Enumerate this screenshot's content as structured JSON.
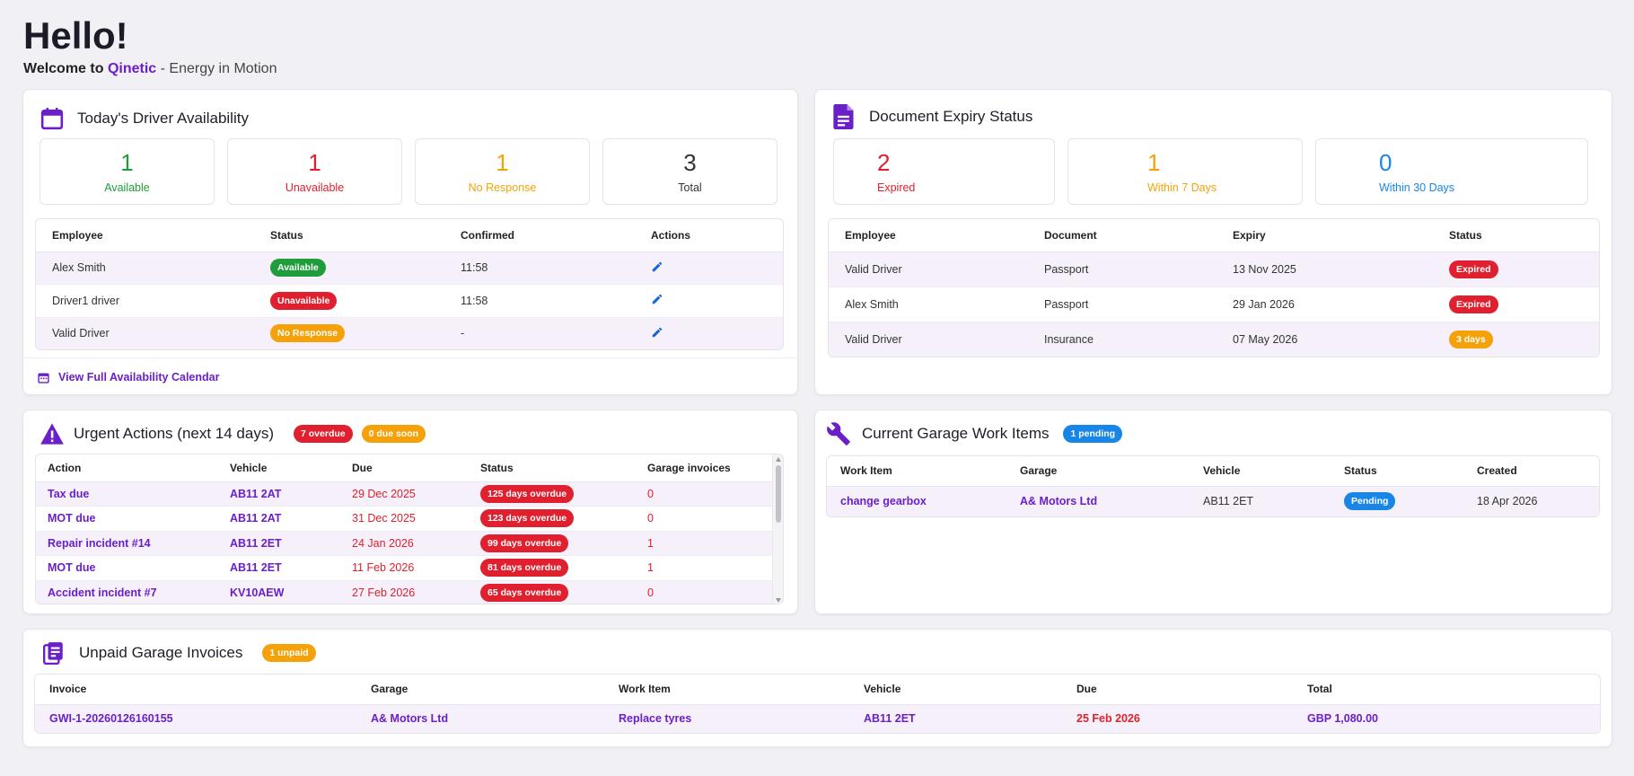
{
  "greeting": {
    "title": "Hello!",
    "welcome": "Welcome to",
    "brand": "Qinetic",
    "tagline": "- Energy in Motion"
  },
  "availability": {
    "title": "Today's Driver Availability",
    "stats": [
      {
        "value": "1",
        "label": "Available",
        "color": "#1f9d3a"
      },
      {
        "value": "1",
        "label": "Unavailable",
        "color": "#e0202e"
      },
      {
        "value": "1",
        "label": "No Response",
        "color": "#f5a20a"
      },
      {
        "value": "3",
        "label": "Total",
        "color": "#333333"
      }
    ],
    "columns": [
      "Employee",
      "Status",
      "Confirmed",
      "Actions"
    ],
    "rows": [
      {
        "employee": "Alex Smith",
        "status": "Available",
        "confirmed": "11:58"
      },
      {
        "employee": "Driver1 driver",
        "status": "Unavailable",
        "confirmed": "11:58"
      },
      {
        "employee": "Valid Driver",
        "status": "No Response",
        "confirmed": "-"
      }
    ],
    "calendar_link": "View Full Availability Calendar"
  },
  "documents": {
    "title": "Document Expiry Status",
    "stats": [
      {
        "value": "2",
        "label": "Expired",
        "color": "#e0202e"
      },
      {
        "value": "1",
        "label": "Within 7 Days",
        "color": "#f5a20a"
      },
      {
        "value": "0",
        "label": "Within 30 Days",
        "color": "#1786e6"
      }
    ],
    "columns": [
      "Employee",
      "Document",
      "Expiry",
      "Status"
    ],
    "rows": [
      {
        "employee": "Valid Driver",
        "document": "Passport",
        "expiry": "13 Nov 2025",
        "status": "Expired"
      },
      {
        "employee": "Alex Smith",
        "document": "Passport",
        "expiry": "29 Jan 2026",
        "status": "Expired"
      },
      {
        "employee": "Valid Driver",
        "document": "Insurance",
        "expiry": "07 May 2026",
        "status": "3 days"
      }
    ]
  },
  "urgent": {
    "title": "Urgent Actions (next 14 days)",
    "badge_overdue": "7 overdue",
    "badge_due_soon": "0 due soon",
    "columns": [
      "Action",
      "Vehicle",
      "Due",
      "Status",
      "Garage invoices"
    ],
    "rows": [
      {
        "action": "Tax due",
        "vehicle": "AB11 2AT",
        "due": "29 Dec 2025",
        "status": "125 days overdue",
        "invoices": "0"
      },
      {
        "action": "MOT due",
        "vehicle": "AB11 2AT",
        "due": "31 Dec 2025",
        "status": "123 days overdue",
        "invoices": "0"
      },
      {
        "action": "Repair incident #14",
        "vehicle": "AB11 2ET",
        "due": "24 Jan 2026",
        "status": "99 days overdue",
        "invoices": "1"
      },
      {
        "action": "MOT due",
        "vehicle": "AB11 2ET",
        "due": "11 Feb 2026",
        "status": "81 days overdue",
        "invoices": "1"
      },
      {
        "action": "Accident incident #7",
        "vehicle": "KV10AEW",
        "due": "27 Feb 2026",
        "status": "65 days overdue",
        "invoices": "0"
      }
    ]
  },
  "garage_work": {
    "title": "Current Garage Work Items",
    "badge": "1 pending",
    "columns": [
      "Work Item",
      "Garage",
      "Vehicle",
      "Status",
      "Created"
    ],
    "rows": [
      {
        "item": "change gearbox",
        "garage": "A& Motors Ltd",
        "vehicle": "AB11 2ET",
        "status": "Pending",
        "created": "18 Apr 2026"
      }
    ]
  },
  "invoices": {
    "title": "Unpaid Garage Invoices",
    "badge": "1 unpaid",
    "columns": [
      "Invoice",
      "Garage",
      "Work Item",
      "Vehicle",
      "Due",
      "Total"
    ],
    "rows": [
      {
        "invoice": "GWI-1-20260126160155",
        "garage": "A& Motors Ltd",
        "item": "Replace tyres",
        "vehicle": "AB11 2ET",
        "due": "25 Feb 2026",
        "total": "GBP 1,080.00"
      }
    ]
  },
  "icons": {
    "calendar": "calendar-icon",
    "document": "document-icon",
    "warning": "warning-icon",
    "wrench": "wrench-icon",
    "invoice": "invoice-icon",
    "edit": "pencil-icon"
  },
  "colors": {
    "accent": "#6a1fc9",
    "background": "#f1f1f5"
  }
}
